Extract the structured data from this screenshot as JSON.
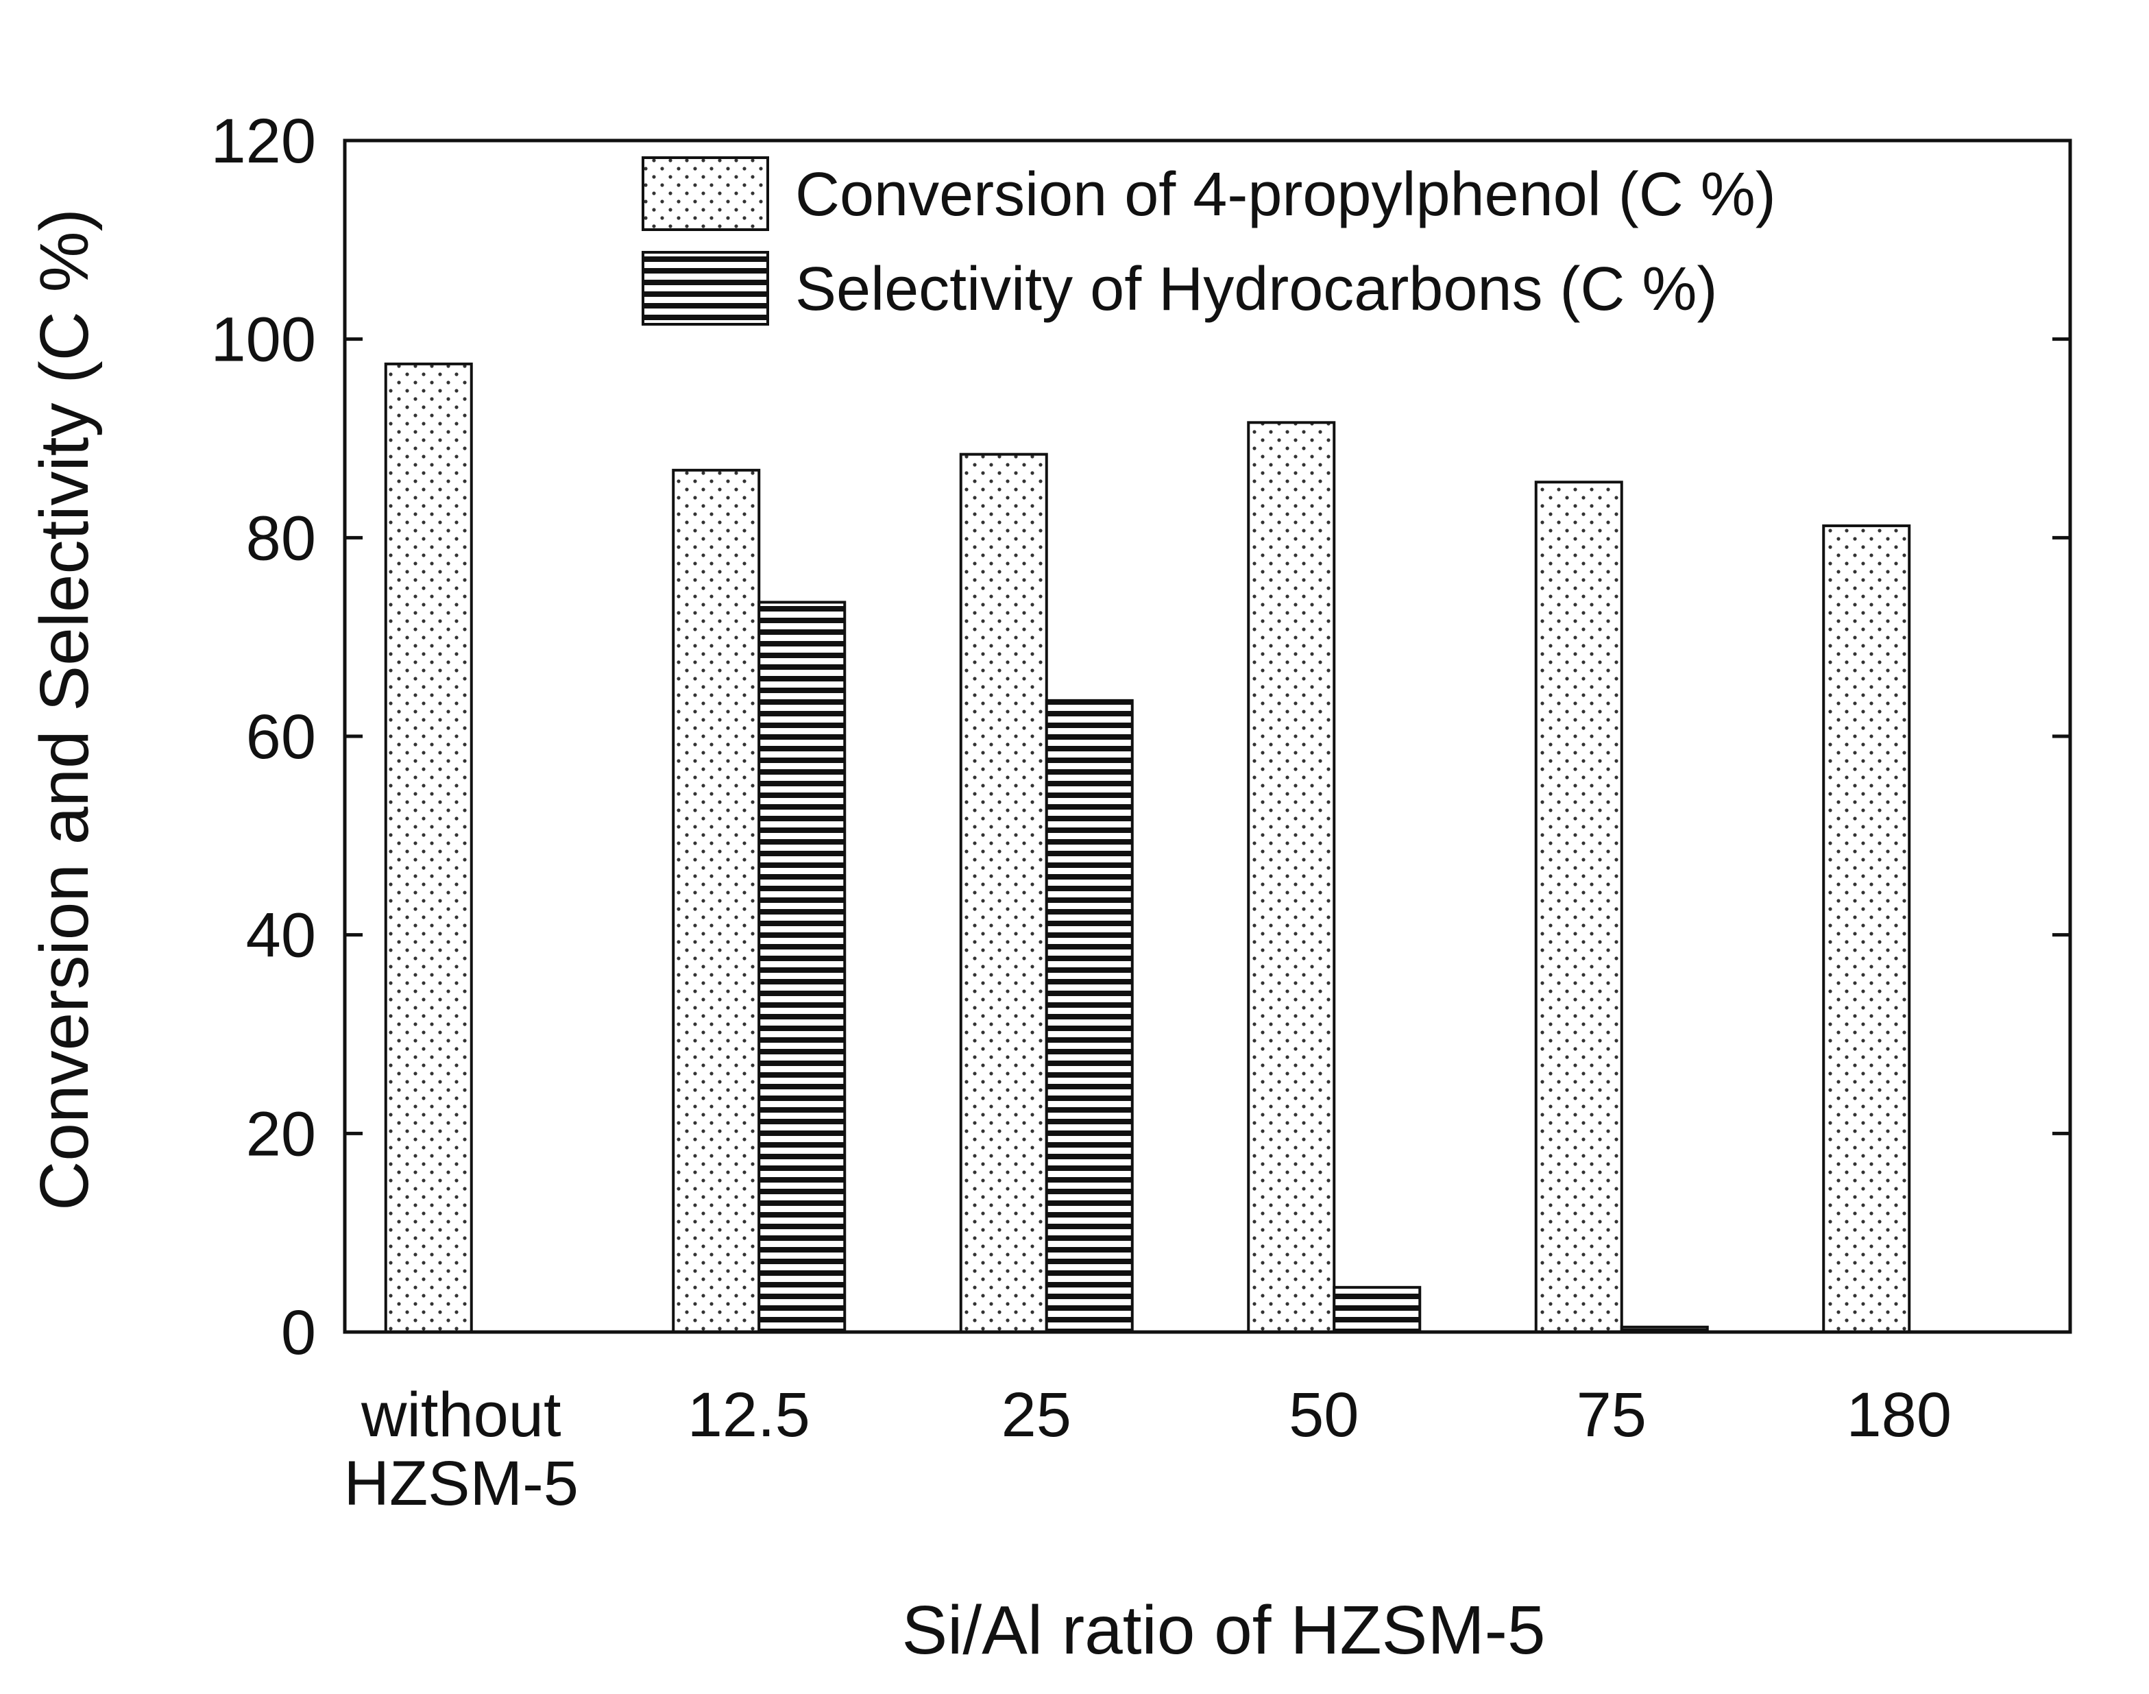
{
  "chart_data": {
    "type": "bar",
    "title": "",
    "xlabel": "Si/Al ratio of HZSM-5",
    "ylabel": "Conversion and Selectivity (C %)",
    "categories": [
      [
        "without",
        "HZSM-5"
      ],
      [
        "12.5"
      ],
      [
        "25"
      ],
      [
        "50"
      ],
      [
        "75"
      ],
      [
        "180"
      ]
    ],
    "series": [
      {
        "name": "Conversion of 4-propylphenol (C %)",
        "pattern": "dots",
        "values": [
          97.5,
          86.8,
          88.4,
          91.6,
          85.6,
          81.2
        ]
      },
      {
        "name": "Selectivity of Hydrocarbons (C %)",
        "pattern": "horizontal-stripes",
        "values": [
          0,
          73.5,
          63.6,
          4.5,
          0.5,
          0
        ]
      }
    ],
    "ylim": [
      0,
      120
    ],
    "yticks": [
      0,
      20,
      40,
      60,
      80,
      100,
      120
    ],
    "grid": false,
    "legend_position": "top-right"
  },
  "colors": {
    "axis": "#111111",
    "bar_fill": "#ffffff",
    "dot": "#333333",
    "stripe": "#111111"
  }
}
